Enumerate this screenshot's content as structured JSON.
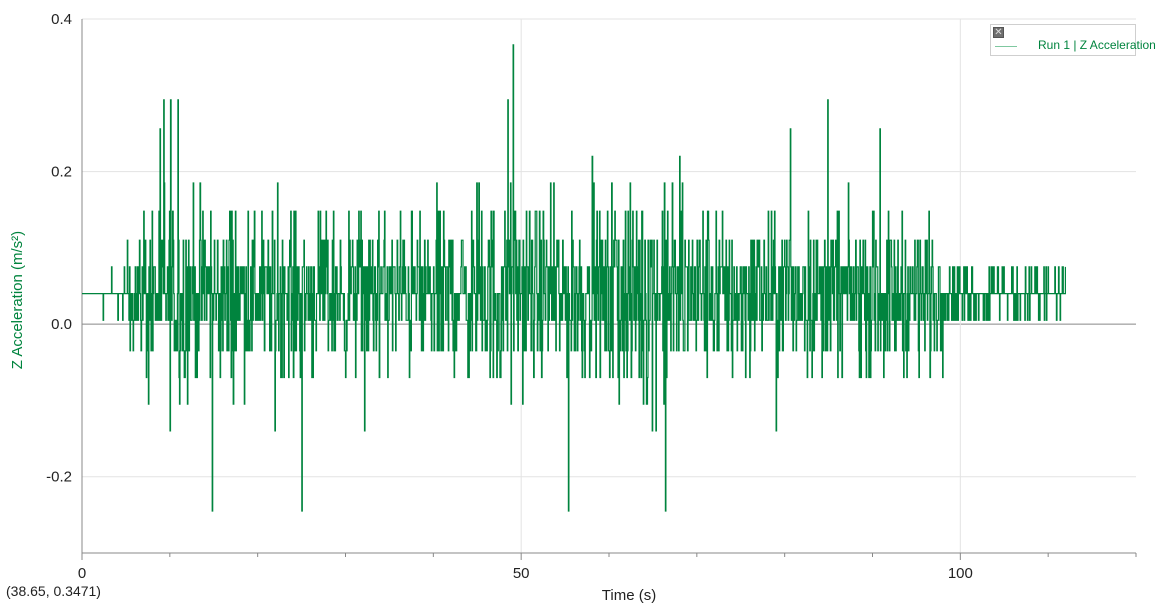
{
  "coordinate_readout": "(38.65, 0.3471)",
  "colors": {
    "series": "#00843e",
    "axis": "#888888",
    "grid": "#e3e3e3",
    "text": "#222222"
  },
  "legend": {
    "label": "Run 1 | Z Acceleration",
    "close_icon": "close-icon"
  },
  "chart_data": {
    "type": "line",
    "title": "",
    "xlabel": "Time (s)",
    "ylabel": "Z Acceleration (m/s²)",
    "xlim": [
      0,
      120
    ],
    "ylim": [
      -0.3,
      0.4
    ],
    "x_ticks": [
      0,
      50,
      100
    ],
    "x_tick_labels": [
      "0",
      "50",
      "100"
    ],
    "y_ticks": [
      -0.2,
      0.0,
      0.2,
      0.4
    ],
    "y_tick_labels": [
      "-0.2",
      "0.0",
      "0.2",
      "0.4"
    ],
    "grid": true,
    "legend_position": "top-right",
    "series": [
      {
        "name": "Run 1 | Z Acceleration",
        "color": "#00843e",
        "x_range": [
          0,
          112
        ],
        "baseline": 0.04,
        "levels": [
          -0.245,
          -0.21,
          -0.175,
          -0.14,
          -0.105,
          -0.07,
          -0.035,
          0.005,
          0.04,
          0.075,
          0.11,
          0.148,
          0.185,
          0.22,
          0.256,
          0.294,
          0.33,
          0.366
        ],
        "peaks": [
          {
            "x": 9.3,
            "y": 0.294
          },
          {
            "x": 10.1,
            "y": 0.294
          },
          {
            "x": 10.9,
            "y": 0.294
          },
          {
            "x": 48.5,
            "y": 0.294
          },
          {
            "x": 49.1,
            "y": 0.366
          },
          {
            "x": 84.9,
            "y": 0.294
          },
          {
            "x": 55.4,
            "y": -0.245
          },
          {
            "x": 25.0,
            "y": -0.245
          },
          {
            "x": 14.8,
            "y": -0.245
          },
          {
            "x": 66.4,
            "y": -0.245
          }
        ]
      }
    ]
  }
}
